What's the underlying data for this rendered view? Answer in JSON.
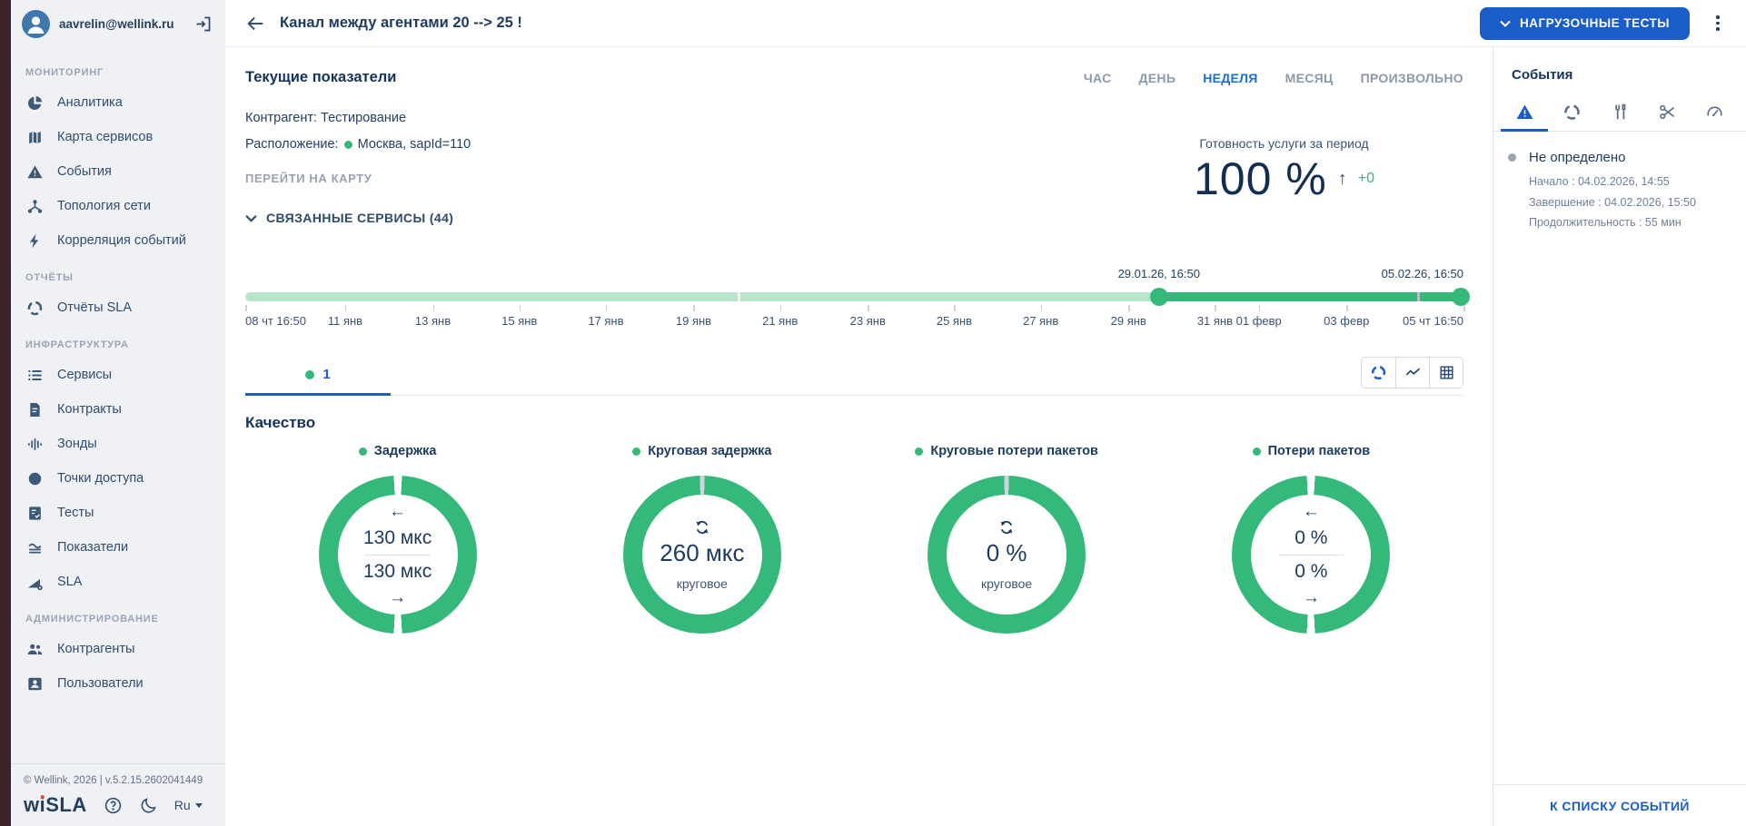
{
  "colors": {
    "accent_blue": "#1a5dc8",
    "green": "#34b97b",
    "light_green": "#b9e4cc",
    "navy": "#1d3a5f",
    "sidebar_bg": "#eff1f5",
    "edge_strip": "#3b2327",
    "gray_text": "#8d99ab"
  },
  "sidebar": {
    "user": {
      "email": "aavrelin@wellink.ru",
      "avatar_icon": "user-avatar-icon",
      "logout_icon": "logout-icon"
    },
    "sections": [
      {
        "title": "МОНИТОРИНГ",
        "items": [
          {
            "label": "Аналитика",
            "icon": "analytics-pie-icon"
          },
          {
            "label": "Карта сервисов",
            "icon": "map-icon"
          },
          {
            "label": "События",
            "icon": "warning-triangle-icon"
          },
          {
            "label": "Топология сети",
            "icon": "topology-icon"
          },
          {
            "label": "Корреляция событий",
            "icon": "lightning-icon"
          }
        ]
      },
      {
        "title": "ОТЧЁТЫ",
        "items": [
          {
            "label": "Отчёты SLA",
            "icon": "sla-ring-icon"
          }
        ]
      },
      {
        "title": "ИНФРАСТРУКТУРА",
        "items": [
          {
            "label": "Сервисы",
            "icon": "list-icon"
          },
          {
            "label": "Контракты",
            "icon": "document-icon"
          },
          {
            "label": "Зонды",
            "icon": "equalizer-icon"
          },
          {
            "label": "Точки доступа",
            "icon": "filled-circle-icon"
          },
          {
            "label": "Тесты",
            "icon": "checklist-icon"
          },
          {
            "label": "Показатели",
            "icon": "waves-icon"
          },
          {
            "label": "SLA",
            "icon": "triangle-gear-icon"
          }
        ]
      },
      {
        "title": "АДМИНИСТРИРОВАНИЕ",
        "items": [
          {
            "label": "Контрагенты",
            "icon": "people-icon"
          },
          {
            "label": "Пользователи",
            "icon": "user-card-icon"
          }
        ]
      }
    ],
    "footer": {
      "copyright": "© Wellink, 2026 | v.5.2.15.2602041449",
      "logo": "wiSLA",
      "language": "Ru"
    }
  },
  "header": {
    "title": "Канал между агентами 20 --> 25 !",
    "load_tests_button": "НАГРУЗОЧНЫЕ ТЕСТЫ"
  },
  "main": {
    "section_title": "Текущие показатели",
    "period_tabs": [
      {
        "label": "ЧАС",
        "active": false
      },
      {
        "label": "ДЕНЬ",
        "active": false
      },
      {
        "label": "НЕДЕЛЯ",
        "active": true
      },
      {
        "label": "МЕСЯЦ",
        "active": false
      },
      {
        "label": "ПРОИЗВОЛЬНО",
        "active": false
      }
    ],
    "contractor_line": "Контрагент: Тестирование",
    "location_label": "Расположение:",
    "location_value": "Москва, sapId=110",
    "go_to_map_link": "ПЕРЕЙТИ НА КАРТУ",
    "availability": {
      "label": "Готовность услуги за период",
      "value": "100 %",
      "delta": "+0"
    },
    "related_services_toggle": "СВЯЗАННЫЕ СЕРВИСЫ (44)",
    "timeline": {
      "selection_start_label": "29.01.26, 16:50",
      "selection_end_label": "05.02.26, 16:50",
      "selection_start_pct": 75,
      "selection_end_pct": 100,
      "gap_markers": [
        {
          "pos": 40.4,
          "color": "#edf5ef"
        },
        {
          "pos": 96.2,
          "color": "#b6bfc9"
        }
      ],
      "ticks": [
        {
          "label": "08 чт 16:50",
          "pos": 0
        },
        {
          "label": "11 янв",
          "pos": 8.2
        },
        {
          "label": "13 янв",
          "pos": 15.4
        },
        {
          "label": "15 янв",
          "pos": 22.5
        },
        {
          "label": "17 янв",
          "pos": 29.6
        },
        {
          "label": "19 янв",
          "pos": 36.8
        },
        {
          "label": "21 янв",
          "pos": 43.9
        },
        {
          "label": "23 янв",
          "pos": 51.1
        },
        {
          "label": "25 янв",
          "pos": 58.2
        },
        {
          "label": "27 янв",
          "pos": 65.3
        },
        {
          "label": "29 янв",
          "pos": 72.5
        },
        {
          "label": "31 янв",
          "pos": 79.6
        },
        {
          "label": "01 февр",
          "pos": 83.2
        },
        {
          "label": "03 февр",
          "pos": 90.4
        },
        {
          "label": "05 чт 16:50",
          "pos": 100
        }
      ]
    },
    "service_tab": {
      "number": "1"
    },
    "quality": {
      "title": "Качество",
      "donuts": [
        {
          "label": "Задержка",
          "type": "two-way",
          "value_top": "130 мкс",
          "value_bottom": "130 мкс"
        },
        {
          "label": "Круговая задержка",
          "type": "round",
          "value": "260 мкс",
          "sublabel": "круговое"
        },
        {
          "label": "Круговые потери пакетов",
          "type": "round",
          "value": "0 %",
          "sublabel": "круговое"
        },
        {
          "label": "Потери пакетов",
          "type": "two-way",
          "value_top": "0 %",
          "value_bottom": "0 %"
        }
      ]
    }
  },
  "events_panel": {
    "title": "События",
    "tabs": [
      {
        "icon": "warning-triangle-icon",
        "active": true
      },
      {
        "icon": "sla-ring-icon",
        "active": false
      },
      {
        "icon": "tools-icon",
        "active": false
      },
      {
        "icon": "scissors-icon",
        "active": false
      },
      {
        "icon": "gauge-icon",
        "active": false
      }
    ],
    "event": {
      "name": "Не определено",
      "start": "Начало : 04.02.2026, 14:55",
      "end": "Завершение : 04.02.2026, 15:50",
      "duration": "Продолжительность : 55 мин"
    },
    "footer_link": "К СПИСКУ СОБЫТИЙ"
  }
}
